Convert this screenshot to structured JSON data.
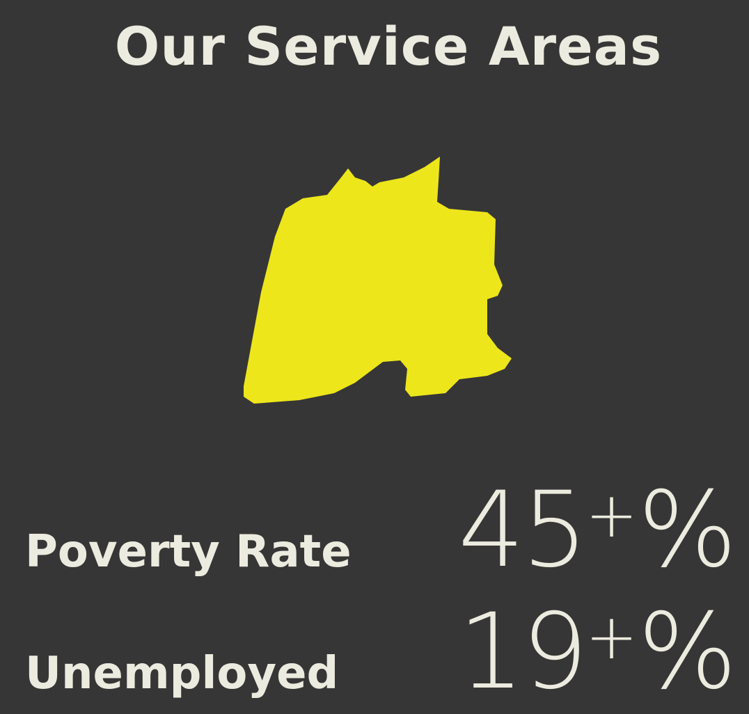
{
  "title": "Our Service Areas",
  "stats": [
    {
      "label": "Poverty Rate",
      "number": "45",
      "sup": "+",
      "unit": "%"
    },
    {
      "label": "Unemployed",
      "number": "19",
      "sup": "+",
      "unit": "%"
    }
  ]
}
